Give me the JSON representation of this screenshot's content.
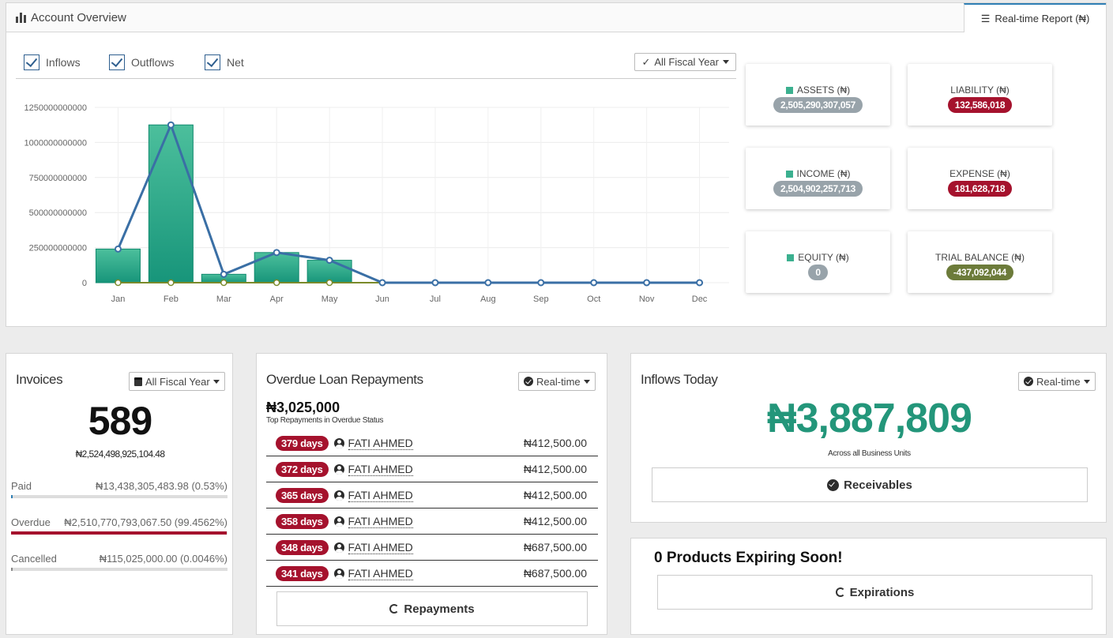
{
  "overview": {
    "title": "Account Overview",
    "tab": "Real-time Report (₦)",
    "filters": [
      "Inflows",
      "Outflows",
      "Net"
    ],
    "fiscal_select": "All Fiscal Year"
  },
  "chart_data": {
    "type": "bar",
    "categories": [
      "Jan",
      "Feb",
      "Mar",
      "Apr",
      "May",
      "Jun",
      "Jul",
      "Aug",
      "Sep",
      "Oct",
      "Nov",
      "Dec"
    ],
    "series": [
      {
        "name": "Inflows",
        "kind": "bar",
        "values": [
          240000000000,
          1125000000000,
          60000000000,
          215000000000,
          160000000000,
          0,
          0,
          0,
          0,
          0,
          0,
          0
        ]
      },
      {
        "name": "Outflows",
        "kind": "line",
        "values": [
          0,
          0,
          0,
          0,
          0,
          0,
          0,
          0,
          0,
          0,
          0,
          0
        ]
      },
      {
        "name": "Net",
        "kind": "line",
        "values": [
          240000000000,
          1125000000000,
          60000000000,
          215000000000,
          160000000000,
          0,
          0,
          0,
          0,
          0,
          0,
          0
        ]
      }
    ],
    "yticks": [
      "0",
      "250000000000",
      "500000000000",
      "750000000000",
      "1000000000000",
      "1250000000000"
    ],
    "ylim": [
      0,
      1250000000000
    ],
    "grid": true,
    "colors": {
      "bar": "#2aa083",
      "net": "#3a6fa5",
      "outflows": "#7a8a2a"
    }
  },
  "cards": [
    {
      "label": "ASSETS (₦)",
      "value": "2,505,290,307,057",
      "marker": true,
      "tone": "grey"
    },
    {
      "label": "LIABILITY (₦)",
      "value": "132,586,018",
      "marker": false,
      "tone": "red"
    },
    {
      "label": "INCOME (₦)",
      "value": "2,504,902,257,713",
      "marker": true,
      "tone": "grey"
    },
    {
      "label": "EXPENSE (₦)",
      "value": "181,628,718",
      "marker": false,
      "tone": "red"
    },
    {
      "label": "EQUITY (₦)",
      "value": "0",
      "marker": true,
      "tone": "grey"
    },
    {
      "label": "TRIAL BALANCE (₦)",
      "value": "-437,092,044",
      "marker": false,
      "tone": "olive"
    }
  ],
  "invoices": {
    "title": "Invoices",
    "select": "All Fiscal Year",
    "count": "589",
    "total": "₦2,524,498,925,104.48",
    "rows": [
      {
        "label": "Paid",
        "value": "₦13,438,305,483.98 (0.53%)",
        "pct": 0.53,
        "color": "#2f7fb5"
      },
      {
        "label": "Overdue",
        "value": "₦2,510,770,793,067.50 (99.4562%)",
        "pct": 99.4562,
        "color": "#a5122d"
      },
      {
        "label": "Cancelled",
        "value": "₦115,025,000.00 (0.0046%)",
        "pct": 0.0046,
        "color": "#888888"
      }
    ]
  },
  "overdue": {
    "title": "Overdue Loan Repayments",
    "select": "Real-time",
    "amount": "₦3,025,000",
    "subtitle": "Top Repayments in Overdue Status",
    "rows": [
      {
        "days": "379 days",
        "name": "FATI AHMED",
        "amount": "₦412,500.00"
      },
      {
        "days": "372 days",
        "name": "FATI AHMED",
        "amount": "₦412,500.00"
      },
      {
        "days": "365 days",
        "name": "FATI AHMED",
        "amount": "₦412,500.00"
      },
      {
        "days": "358 days",
        "name": "FATI AHMED",
        "amount": "₦412,500.00"
      },
      {
        "days": "348 days",
        "name": "FATI AHMED",
        "amount": "₦687,500.00"
      },
      {
        "days": "341 days",
        "name": "FATI AHMED",
        "amount": "₦687,500.00"
      }
    ],
    "button": "Repayments"
  },
  "inflows_today": {
    "title": "Inflows Today",
    "select": "Real-time",
    "amount": "₦3,887,809",
    "subtitle": "Across all Business Units",
    "button": "Receivables",
    "accent": "#23967a"
  },
  "expiring": {
    "title": "0 Products Expiring Soon!",
    "button": "Expirations"
  }
}
